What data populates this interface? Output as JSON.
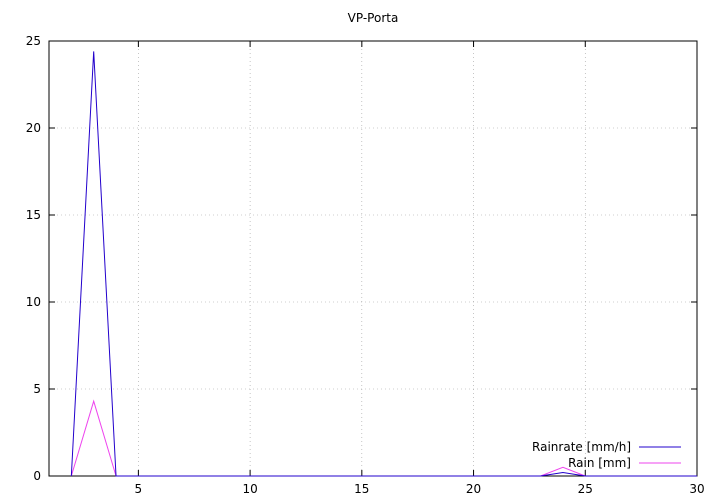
{
  "chart_data": {
    "type": "line",
    "title": "VP-Porta",
    "xlabel": "",
    "ylabel": "",
    "xlim": [
      1,
      30
    ],
    "ylim": [
      0,
      25
    ],
    "x_ticks": [
      5,
      10,
      15,
      20,
      25,
      30
    ],
    "y_ticks": [
      0,
      5,
      10,
      15,
      20,
      25
    ],
    "grid": true,
    "grid_style": "dotted",
    "legend_position": "bottom-right",
    "series": [
      {
        "name": "Rainrate [mm/h]",
        "color": "#2200cc",
        "x": [
          2,
          3,
          4,
          5,
          10,
          15,
          20,
          23,
          24,
          25,
          30
        ],
        "y": [
          0,
          24.4,
          0,
          0,
          0,
          0,
          0,
          0,
          0.2,
          0,
          0
        ]
      },
      {
        "name": "Rain [mm]",
        "color": "#ee44ee",
        "x": [
          2,
          3,
          4,
          5,
          10,
          15,
          20,
          23,
          24,
          25,
          30
        ],
        "y": [
          0,
          4.3,
          0,
          0,
          0,
          0,
          0,
          0,
          0.5,
          0,
          0
        ]
      }
    ]
  }
}
